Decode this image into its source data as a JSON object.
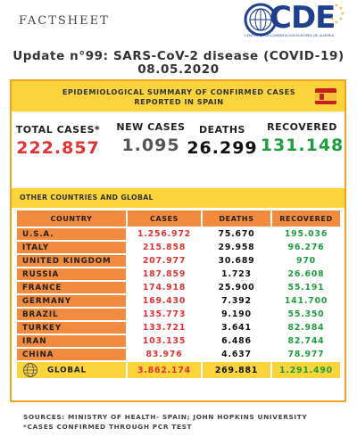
{
  "header": {
    "label": "FACTSHEET",
    "logo_text": "CDE",
    "logo_subtext": "CENTRO DE DOCUMENTACIÓN EUROPEA DE ALMERÍA",
    "title_line1": "Update n°99: SARS-CoV-2 disease (COVID-19)",
    "title_line2": "08.05.2020"
  },
  "summary": {
    "title_line1": "EPIDEMIOLOGICAL SUMMARY OF CONFIRMED CASES",
    "title_line2": "REPORTED IN SPAIN",
    "total_cases_label": "TOTAL CASES*",
    "total_cases": "222.857",
    "new_cases_label": "NEW CASES",
    "new_cases": "1.095",
    "deaths_label": "DEATHS",
    "deaths": "26.299",
    "recovered_label": "RECOVERED",
    "recovered": "131.148"
  },
  "other": {
    "title": "OTHER COUNTRIES AND GLOBAL",
    "headers": {
      "country": "COUNTRY",
      "cases": "CASES",
      "deaths": "DEATHS",
      "recovered": "RECOVERED"
    },
    "rows": [
      {
        "country": "U.S.A.",
        "cases": "1.256.972",
        "deaths": "75.670",
        "recovered": "195.036"
      },
      {
        "country": "ITALY",
        "cases": "215.858",
        "deaths": "29.958",
        "recovered": "96.276"
      },
      {
        "country": "UNITED KINGDOM",
        "cases": "207.977",
        "deaths": "30.689",
        "recovered": "970"
      },
      {
        "country": "RUSSIA",
        "cases": "187.859",
        "deaths": "1.723",
        "recovered": "26.608"
      },
      {
        "country": "FRANCE",
        "cases": "174.918",
        "deaths": "25.900",
        "recovered": "55.191"
      },
      {
        "country": "GERMANY",
        "cases": "169.430",
        "deaths": "7.392",
        "recovered": "141.700"
      },
      {
        "country": "BRAZIL",
        "cases": "135.773",
        "deaths": "9.190",
        "recovered": "55.350"
      },
      {
        "country": "TURKEY",
        "cases": "133.721",
        "deaths": "3.641",
        "recovered": "82.984"
      },
      {
        "country": "IRAN",
        "cases": "103.135",
        "deaths": "6.486",
        "recovered": "82.744"
      },
      {
        "country": "CHINA",
        "cases": "83.976",
        "deaths": "4.637",
        "recovered": "78.977"
      }
    ],
    "global": {
      "label": "GLOBAL",
      "cases": "3.862.174",
      "deaths": "269.881",
      "recovered": "1.291.490"
    }
  },
  "footer": {
    "sources": "SOURCES: MINISTRY OF HEALTH- SPAIN; JOHN HOPKINS UNIVERSITY",
    "note": "*CASES CONFIRMED THROUGH PCR TEST"
  },
  "colors": {
    "accent_yellow": "#fbd43c",
    "header_orange": "#f28b3e",
    "border_orange": "#f2a31f",
    "cases_red": "#e03232",
    "recovered_green": "#1e9e3e",
    "logo_blue": "#1f3f8f"
  },
  "icons": [
    "logo-circle-icon",
    "spain-flag-icon",
    "globe-icon"
  ]
}
